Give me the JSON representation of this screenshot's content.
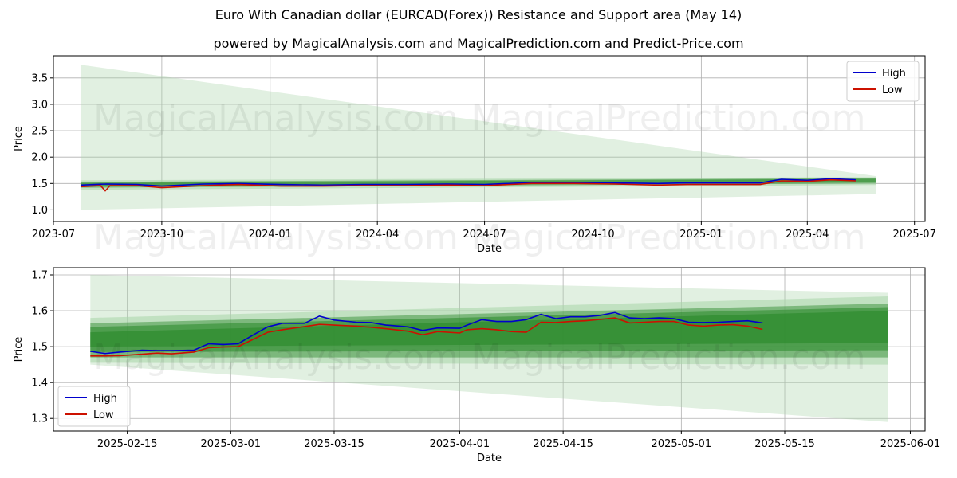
{
  "title": "Euro With Canadian dollar (EURCAD(Forex)) Resistance and Support area (May 14)",
  "subtitle": "powered by MagicalAnalysis.com and MagicalPrediction.com and Predict-Price.com",
  "watermarks": [
    "MagicalAnalysis.com",
    "MagicalPrediction.com"
  ],
  "colors": {
    "high": "#0000cc",
    "low": "#cc1100",
    "band_dark": "#2e8b2e",
    "band_light": "#a8d5a8"
  },
  "chart_data": [
    {
      "type": "line",
      "xlabel": "Date",
      "ylabel": "Price",
      "x_range": [
        "2023-07-01",
        "2025-07-10"
      ],
      "ylim": [
        0.78,
        3.92
      ],
      "x_ticks": [
        {
          "label": "2023-07",
          "date": "2023-07-01"
        },
        {
          "label": "2023-10",
          "date": "2023-10-01"
        },
        {
          "label": "2024-01",
          "date": "2024-01-01"
        },
        {
          "label": "2024-04",
          "date": "2024-04-01"
        },
        {
          "label": "2024-07",
          "date": "2024-07-01"
        },
        {
          "label": "2024-10",
          "date": "2024-10-01"
        },
        {
          "label": "2025-01",
          "date": "2025-01-01"
        },
        {
          "label": "2025-04",
          "date": "2025-04-01"
        },
        {
          "label": "2025-07",
          "date": "2025-07-01"
        }
      ],
      "y_ticks": [
        1.0,
        1.5,
        2.0,
        2.5,
        3.0,
        3.5
      ],
      "y_tick_labels": [
        "1.0",
        "1.5",
        "2.0",
        "2.5",
        "3.0",
        "3.5"
      ],
      "legend": {
        "position": "top-right",
        "entries": [
          "High",
          "Low"
        ]
      },
      "grid": true,
      "band": {
        "start": "2023-07-24",
        "end": "2025-05-29",
        "outer": {
          "start": [
            1.0,
            3.75
          ],
          "end": [
            1.3,
            1.64
          ]
        },
        "layers": [
          {
            "start": [
              1.38,
              1.56
            ],
            "end": [
              1.47,
              1.62
            ]
          },
          {
            "start": [
              1.42,
              1.53
            ],
            "end": [
              1.5,
              1.6
            ]
          },
          {
            "start": [
              1.44,
              1.51
            ],
            "end": [
              1.52,
              1.59
            ]
          }
        ]
      },
      "series": [
        {
          "name": "High",
          "x": [
            "2023-07-24",
            "2023-08-15",
            "2023-09-10",
            "2023-10-01",
            "2023-11-05",
            "2023-12-05",
            "2024-01-10",
            "2024-02-15",
            "2024-03-20",
            "2024-04-25",
            "2024-05-30",
            "2024-07-01",
            "2024-08-10",
            "2024-09-15",
            "2024-10-20",
            "2024-11-25",
            "2024-12-20",
            "2025-01-25",
            "2025-02-20",
            "2025-03-10",
            "2025-04-01",
            "2025-04-21",
            "2025-05-12"
          ],
          "values": [
            1.47,
            1.49,
            1.48,
            1.45,
            1.49,
            1.5,
            1.48,
            1.47,
            1.48,
            1.48,
            1.49,
            1.48,
            1.52,
            1.52,
            1.51,
            1.5,
            1.51,
            1.51,
            1.51,
            1.58,
            1.56,
            1.59,
            1.57
          ]
        },
        {
          "name": "Low",
          "x": [
            "2023-07-24",
            "2023-08-10",
            "2023-08-14",
            "2023-08-18",
            "2023-09-10",
            "2023-10-01",
            "2023-11-05",
            "2023-12-05",
            "2024-01-10",
            "2024-02-15",
            "2024-03-20",
            "2024-04-25",
            "2024-05-30",
            "2024-07-01",
            "2024-08-10",
            "2024-09-15",
            "2024-10-20",
            "2024-11-25",
            "2024-12-20",
            "2025-01-25",
            "2025-02-20",
            "2025-03-10",
            "2025-04-01",
            "2025-04-21",
            "2025-05-12"
          ],
          "values": [
            1.44,
            1.46,
            1.36,
            1.46,
            1.46,
            1.42,
            1.46,
            1.48,
            1.45,
            1.45,
            1.46,
            1.46,
            1.47,
            1.46,
            1.5,
            1.5,
            1.49,
            1.47,
            1.48,
            1.48,
            1.48,
            1.55,
            1.54,
            1.57,
            1.55
          ]
        }
      ]
    },
    {
      "type": "line",
      "xlabel": "Date",
      "ylabel": "Price",
      "x_range": [
        "2025-02-05",
        "2025-06-03"
      ],
      "ylim": [
        1.265,
        1.72
      ],
      "x_ticks": [
        {
          "label": "2025-02-15",
          "date": "2025-02-15"
        },
        {
          "label": "2025-03-01",
          "date": "2025-03-01"
        },
        {
          "label": "2025-03-15",
          "date": "2025-03-15"
        },
        {
          "label": "2025-04-01",
          "date": "2025-04-01"
        },
        {
          "label": "2025-04-15",
          "date": "2025-04-15"
        },
        {
          "label": "2025-05-01",
          "date": "2025-05-01"
        },
        {
          "label": "2025-05-15",
          "date": "2025-05-15"
        },
        {
          "label": "2025-06-01",
          "date": "2025-06-01"
        }
      ],
      "y_ticks": [
        1.3,
        1.4,
        1.5,
        1.6,
        1.7
      ],
      "y_tick_labels": [
        "1.3",
        "1.4",
        "1.5",
        "1.6",
        "1.7"
      ],
      "legend": {
        "position": "bottom-left",
        "entries": [
          "High",
          "Low"
        ]
      },
      "grid": true,
      "band": {
        "start": "2025-02-10",
        "end": "2025-05-29",
        "outer": {
          "start": [
            1.45,
            1.7
          ],
          "end": [
            1.29,
            1.65
          ]
        },
        "layers": [
          {
            "start": [
              1.455,
              1.58
            ],
            "end": [
              1.45,
              1.64
            ]
          },
          {
            "start": [
              1.47,
              1.565
            ],
            "end": [
              1.47,
              1.62
            ]
          },
          {
            "start": [
              1.485,
              1.555
            ],
            "end": [
              1.49,
              1.61
            ]
          },
          {
            "start": [
              1.5,
              1.54
            ],
            "end": [
              1.51,
              1.6
            ]
          }
        ]
      },
      "series": [
        {
          "name": "High",
          "x": [
            "2025-02-10",
            "2025-02-12",
            "2025-02-14",
            "2025-02-17",
            "2025-02-19",
            "2025-02-21",
            "2025-02-24",
            "2025-02-26",
            "2025-02-28",
            "2025-03-02",
            "2025-03-04",
            "2025-03-06",
            "2025-03-08",
            "2025-03-11",
            "2025-03-13",
            "2025-03-15",
            "2025-03-18",
            "2025-03-20",
            "2025-03-22",
            "2025-03-25",
            "2025-03-27",
            "2025-03-29",
            "2025-04-01",
            "2025-04-02",
            "2025-04-04",
            "2025-04-06",
            "2025-04-08",
            "2025-04-10",
            "2025-04-12",
            "2025-04-14",
            "2025-04-16",
            "2025-04-18",
            "2025-04-20",
            "2025-04-22",
            "2025-04-24",
            "2025-04-26",
            "2025-04-28",
            "2025-04-30",
            "2025-05-02",
            "2025-05-04",
            "2025-05-06",
            "2025-05-08",
            "2025-05-10",
            "2025-05-12"
          ],
          "values": [
            1.487,
            1.481,
            1.485,
            1.49,
            1.489,
            1.489,
            1.49,
            1.508,
            1.506,
            1.508,
            1.532,
            1.555,
            1.565,
            1.565,
            1.585,
            1.574,
            1.568,
            1.567,
            1.56,
            1.555,
            1.545,
            1.552,
            1.551,
            1.56,
            1.575,
            1.57,
            1.57,
            1.575,
            1.59,
            1.578,
            1.583,
            1.583,
            1.587,
            1.595,
            1.58,
            1.578,
            1.58,
            1.578,
            1.568,
            1.567,
            1.568,
            1.57,
            1.572,
            1.566
          ]
        },
        {
          "name": "Low",
          "x": [
            "2025-02-10",
            "2025-02-12",
            "2025-02-14",
            "2025-02-17",
            "2025-02-19",
            "2025-02-21",
            "2025-02-24",
            "2025-02-26",
            "2025-02-28",
            "2025-03-02",
            "2025-03-04",
            "2025-03-06",
            "2025-03-08",
            "2025-03-11",
            "2025-03-13",
            "2025-03-15",
            "2025-03-18",
            "2025-03-20",
            "2025-03-22",
            "2025-03-25",
            "2025-03-27",
            "2025-03-29",
            "2025-04-01",
            "2025-04-02",
            "2025-04-04",
            "2025-04-06",
            "2025-04-08",
            "2025-04-10",
            "2025-04-12",
            "2025-04-14",
            "2025-04-16",
            "2025-04-18",
            "2025-04-20",
            "2025-04-22",
            "2025-04-24",
            "2025-04-26",
            "2025-04-28",
            "2025-04-30",
            "2025-05-02",
            "2025-05-04",
            "2025-05-06",
            "2025-05-08",
            "2025-05-10",
            "2025-05-12"
          ],
          "values": [
            1.474,
            1.474,
            1.475,
            1.479,
            1.482,
            1.48,
            1.485,
            1.497,
            1.499,
            1.5,
            1.52,
            1.54,
            1.547,
            1.556,
            1.562,
            1.56,
            1.557,
            1.554,
            1.55,
            1.543,
            1.533,
            1.542,
            1.538,
            1.547,
            1.55,
            1.547,
            1.542,
            1.54,
            1.568,
            1.567,
            1.57,
            1.572,
            1.576,
            1.58,
            1.566,
            1.568,
            1.57,
            1.57,
            1.56,
            1.557,
            1.56,
            1.561,
            1.557,
            1.548
          ]
        }
      ]
    }
  ]
}
